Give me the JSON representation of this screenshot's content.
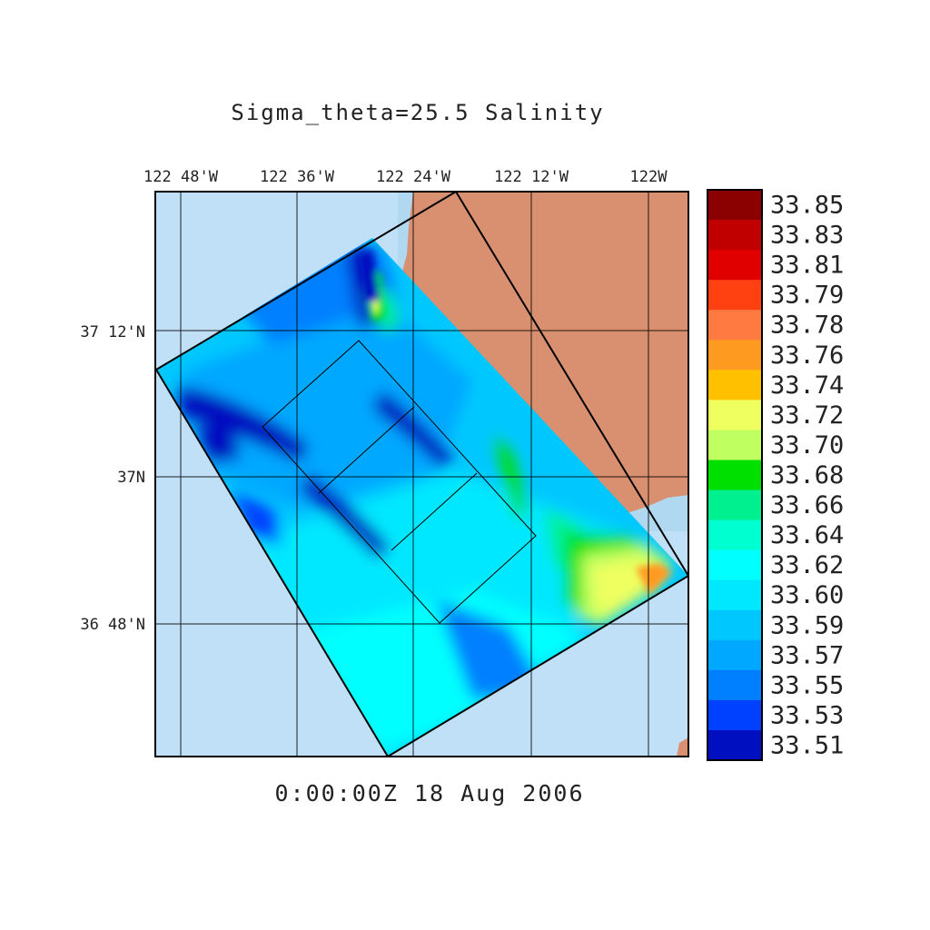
{
  "title": "Sigma_theta=25.5 Salinity",
  "timestamp": "0:00:00Z  18 Aug 2006",
  "lon_ticks": [
    "122 48'W",
    "122 36'W",
    "122 24'W",
    "122 12'W",
    "122W"
  ],
  "lat_ticks": [
    "37 12'N",
    "37N",
    "36 48'N"
  ],
  "colorbar": {
    "labels": [
      "33.85",
      "33.83",
      "33.81",
      "33.79",
      "33.78",
      "33.76",
      "33.74",
      "33.72",
      "33.70",
      "33.68",
      "33.66",
      "33.64",
      "33.62",
      "33.60",
      "33.59",
      "33.57",
      "33.55",
      "33.53",
      "33.51"
    ],
    "colors": [
      "#8b0000",
      "#c00000",
      "#e00000",
      "#ff4010",
      "#ff7a40",
      "#ff9a20",
      "#ffc000",
      "#f0ff60",
      "#c0ff60",
      "#00e000",
      "#00f090",
      "#00ffd0",
      "#00ffff",
      "#00e8ff",
      "#00c8ff",
      "#00a8ff",
      "#0080ff",
      "#0040ff",
      "#0010c0"
    ]
  },
  "colors": {
    "ocean": "#c0e0f8",
    "land": "#d89070",
    "coastal_shelf": "#b0d8f0",
    "frame": "#000000"
  }
}
